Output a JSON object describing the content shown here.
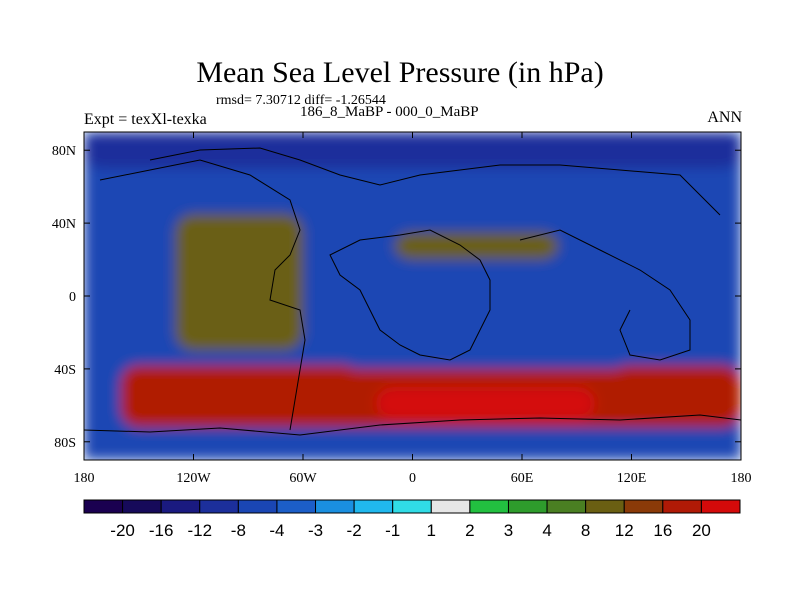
{
  "chart_data": {
    "type": "heatmap",
    "title": "Mean Sea Level Pressure (in hPa)",
    "stats_line": "rmsd= 7.30712 diff= -1.26544",
    "experiment_label": "Expt = texXl-texka",
    "comparison_label": "186_8_MaBP - 000_0_MaBP",
    "period_label": "ANN",
    "xlabel": "",
    "ylabel": "",
    "xlim": [
      -180,
      180
    ],
    "ylim": [
      -90,
      90
    ],
    "x_ticks": [
      {
        "value": -180,
        "label": "180"
      },
      {
        "value": -120,
        "label": "120W"
      },
      {
        "value": -60,
        "label": "60W"
      },
      {
        "value": 0,
        "label": "0"
      },
      {
        "value": 60,
        "label": "60E"
      },
      {
        "value": 120,
        "label": "120E"
      },
      {
        "value": 180,
        "label": "180"
      }
    ],
    "y_ticks": [
      {
        "value": 80,
        "label": "80N"
      },
      {
        "value": 40,
        "label": "40N"
      },
      {
        "value": 0,
        "label": "0"
      },
      {
        "value": -40,
        "label": "40S"
      },
      {
        "value": -80,
        "label": "80S"
      }
    ],
    "contour_levels": [
      -20,
      -16,
      -12,
      -8,
      -4,
      -3,
      -2,
      -1,
      1,
      2,
      3,
      4,
      8,
      12,
      16,
      20
    ],
    "colorbar_labels": [
      "-20",
      "-16",
      "-12",
      "-8",
      "-4",
      "-3",
      "-2",
      "-1",
      "1",
      "2",
      "3",
      "4",
      "8",
      "12",
      "16",
      "20"
    ],
    "colors": [
      "#160a5a",
      "#1a1a80",
      "#1c2f9b",
      "#1a46b4",
      "#1c5ec8",
      "#1a8fe0",
      "#20b8ee",
      "#30dce6",
      "#e6e6e6",
      "#22c040",
      "#2e9c2c",
      "#4a7f22",
      "#6a5f12",
      "#8a3a08",
      "#b01a06",
      "#d40a0a"
    ],
    "approximate_regions": [
      {
        "name": "north-polar-low",
        "lon": [
          -180,
          180
        ],
        "lat": [
          70,
          90
        ],
        "value": -14
      },
      {
        "name": "south-ocean-high",
        "lon": [
          -160,
          180
        ],
        "lat": [
          -72,
          -38
        ],
        "value": 14
      },
      {
        "name": "south-ocean-peak",
        "lon": [
          -20,
          100
        ],
        "lat": [
          -68,
          -50
        ],
        "value": 20
      },
      {
        "name": "west-central-high",
        "lon": [
          -130,
          -60
        ],
        "lat": [
          -30,
          45
        ],
        "value": 6
      },
      {
        "name": "eastern-basin-low",
        "lon": [
          -40,
          120
        ],
        "lat": [
          -40,
          40
        ],
        "value": -10
      },
      {
        "name": "interior-high-band",
        "lon": [
          -10,
          80
        ],
        "lat": [
          20,
          35
        ],
        "value": 6
      }
    ]
  }
}
